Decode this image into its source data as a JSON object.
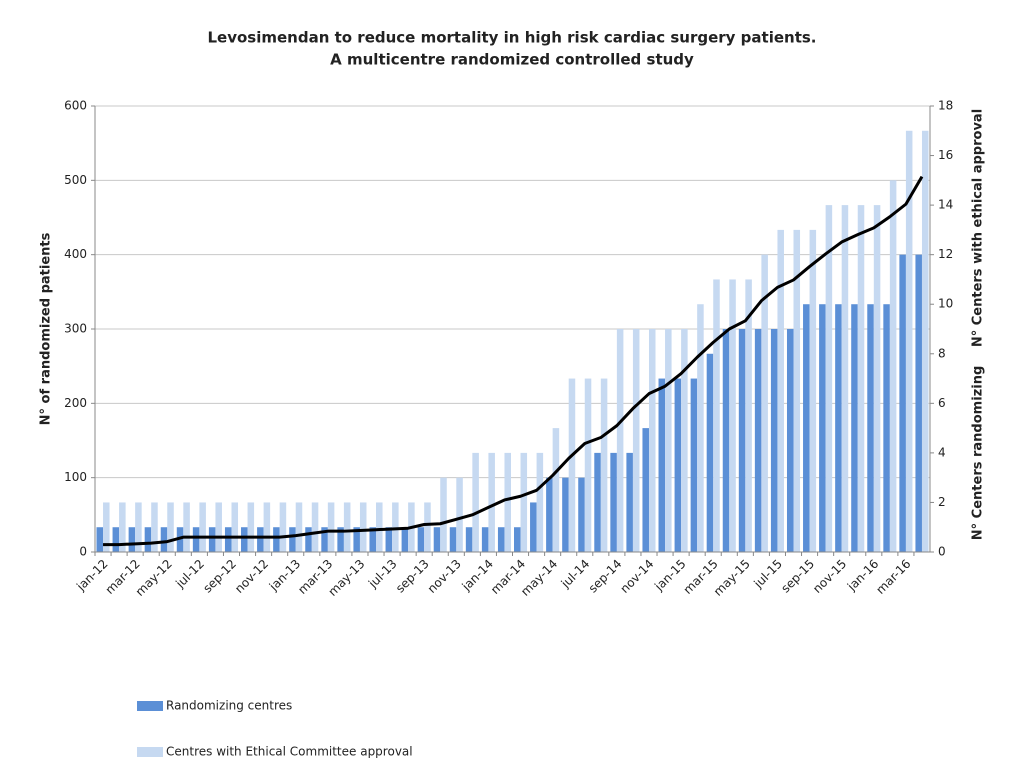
{
  "chart_data": {
    "type": "bar",
    "title": "Levosimendan to reduce mortality in high risk cardiac surgery patients.",
    "subtitle": "A multicentre randomized controlled study",
    "y_label": "N° of randomized patients",
    "y2_labels": [
      "N° Centers with ethical approval",
      "N° Centers randomizing"
    ],
    "categories": [
      "jan-12",
      null,
      "mar-12",
      null,
      "may-12",
      null,
      "jul-12",
      null,
      "sep-12",
      null,
      "nov-12",
      null,
      "jan-13",
      null,
      "mar-13",
      null,
      "may-13",
      null,
      "jul-13",
      null,
      "sep-13",
      null,
      "nov-13",
      null,
      "jan-14",
      null,
      "mar-14",
      null,
      "may-14",
      null,
      "jul-14",
      null,
      "sep-14",
      null,
      "nov-14",
      null,
      "jan-15",
      null,
      "mar-15",
      null,
      "may-15",
      null,
      "jul-15",
      null,
      "sep-15",
      null,
      "nov-15",
      null,
      "jan-16",
      null,
      "mar-16",
      null
    ],
    "series": [
      {
        "name": "Randomizing centres",
        "type": "bar",
        "axis": "y2",
        "color": "#5b8fd6",
        "values": [
          1,
          1,
          1,
          1,
          1,
          1,
          1,
          1,
          1,
          1,
          1,
          1,
          1,
          1,
          1,
          1,
          1,
          1,
          1,
          1,
          1,
          1,
          1,
          1,
          1,
          1,
          1,
          2,
          3,
          3,
          3,
          4,
          4,
          4,
          5,
          7,
          7,
          7,
          8,
          9,
          9,
          9,
          9,
          9,
          10,
          10,
          10,
          10,
          10,
          10,
          12,
          12
        ]
      },
      {
        "name": "Centres with Ethical Committee approval",
        "type": "bar",
        "axis": "y2",
        "color": "#c6d9f1",
        "values": [
          2,
          2,
          2,
          2,
          2,
          2,
          2,
          2,
          2,
          2,
          2,
          2,
          2,
          2,
          2,
          2,
          2,
          2,
          2,
          2,
          2,
          3,
          3,
          4,
          4,
          4,
          4,
          4,
          5,
          7,
          7,
          7,
          9,
          9,
          9,
          9,
          9,
          10,
          11,
          11,
          11,
          12,
          13,
          13,
          13,
          14,
          14,
          14,
          14,
          15,
          17,
          17
        ]
      },
      {
        "type": "line",
        "axis": "y",
        "color": "#000000",
        "values": [
          10,
          10,
          11,
          12,
          14,
          20,
          20,
          20,
          20,
          20,
          20,
          20,
          22,
          25,
          28,
          28,
          29,
          30,
          31,
          32,
          37,
          38,
          44,
          50,
          60,
          70,
          75,
          83,
          103,
          126,
          146,
          154,
          170,
          193,
          213,
          223,
          240,
          262,
          282,
          300,
          311,
          338,
          356,
          366,
          384,
          401,
          417,
          427,
          436,
          451,
          468,
          505
        ]
      }
    ],
    "ylim": [
      0,
      600
    ],
    "yticks": [
      0,
      100,
      200,
      300,
      400,
      500,
      600
    ],
    "y2lim": [
      0,
      18
    ],
    "y2ticks": [
      0,
      2,
      4,
      6,
      8,
      10,
      12,
      14,
      16,
      18
    ],
    "grid": true
  }
}
